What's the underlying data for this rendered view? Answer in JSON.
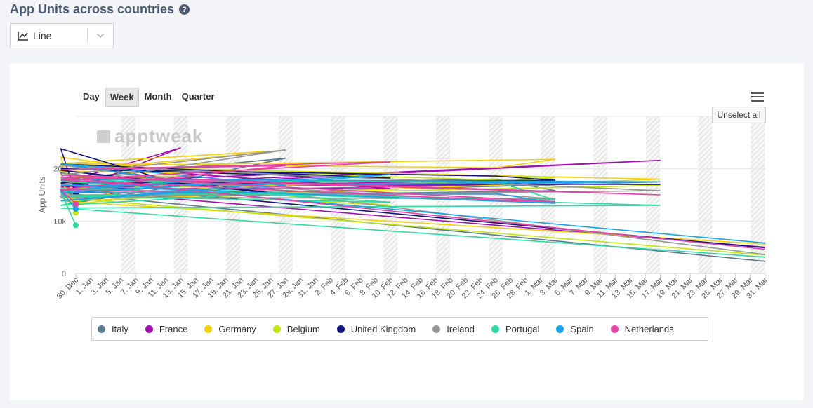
{
  "header": {
    "title": "App Units across countries",
    "help_icon": "question-circle-icon"
  },
  "chart_type_select": {
    "value": "Line",
    "icon": "line-chart-icon"
  },
  "range_buttons": [
    {
      "label": "Day",
      "active": false
    },
    {
      "label": "Week",
      "active": true
    },
    {
      "label": "Month",
      "active": false
    },
    {
      "label": "Quarter",
      "active": false
    }
  ],
  "unselect_label": "Unselect all",
  "watermark": "apptweak",
  "chart_data": {
    "type": "line",
    "ylabel": "App Units",
    "yticks": [
      "0",
      "10k",
      "20k"
    ],
    "ylim": [
      0,
      30000
    ],
    "x_tick_labels": [
      "30. Dec",
      "1. Jan",
      "3. Jan",
      "5. Jan",
      "7. Jan",
      "9. Jan",
      "11. Jan",
      "13. Jan",
      "15. Jan",
      "17. Jan",
      "19. Jan",
      "21. Jan",
      "23. Jan",
      "25. Jan",
      "27. Jan",
      "29. Jan",
      "31. Jan",
      "2. Feb",
      "4. Feb",
      "6. Feb",
      "8. Feb",
      "10. Feb",
      "12. Feb",
      "14. Feb",
      "16. Feb",
      "18. Feb",
      "20. Feb",
      "22. Feb",
      "24. Feb",
      "26. Feb",
      "28. Feb",
      "1. Mar",
      "3. Mar",
      "5. Mar",
      "7. Mar",
      "9. Mar",
      "11. Mar",
      "13. Mar",
      "15. Mar",
      "17. Mar",
      "19. Mar",
      "21. Mar",
      "23. Mar",
      "25. Mar",
      "27. Mar",
      "29. Mar",
      "31. Mar"
    ],
    "points_x": [
      "30. Dec",
      "6. Jan",
      "13. Jan",
      "20. Jan",
      "27. Jan",
      "3. Feb",
      "10. Feb",
      "17. Feb",
      "24. Feb",
      "3. Mar",
      "10. Mar",
      "17. Mar",
      "24. Mar",
      "31. Mar"
    ],
    "series": [
      {
        "name": "Italy",
        "color": "#5b7b8c",
        "values": [
          13200,
          19200,
          16800,
          13000,
          22000,
          18000,
          16800,
          16600,
          18000,
          15800,
          14400,
          17500,
          15400,
          2300
        ]
      },
      {
        "name": "France",
        "color": "#a010b0",
        "values": [
          16200,
          15000,
          24000,
          17200,
          19000,
          20800,
          16200,
          16200,
          17800,
          17000,
          16500,
          21600,
          16000,
          5000
        ]
      },
      {
        "name": "Germany",
        "color": "#f2d20d",
        "values": [
          13800,
          22200,
          19200,
          19500,
          23500,
          21000,
          18200,
          21000,
          20200,
          21800,
          20500,
          18000,
          13800,
          5600
        ]
      },
      {
        "name": "Belgium",
        "color": "#c4e314",
        "values": [
          11600,
          18300,
          18600,
          13000,
          17200,
          18800,
          13000,
          16200,
          17500,
          18300,
          20500,
          16800,
          14500,
          3500
        ]
      },
      {
        "name": "United Kingdom",
        "color": "#12137a",
        "values": [
          15200,
          23800,
          17000,
          19700,
          15000,
          20900,
          18200,
          20000,
          18600,
          17800,
          17200,
          17000,
          17300,
          4900
        ]
      },
      {
        "name": "Ireland",
        "color": "#969696",
        "values": [
          13000,
          14600,
          15200,
          17000,
          23600,
          18800,
          15000,
          15000,
          15100,
          14200,
          14600,
          15800,
          20700,
          3600
        ]
      },
      {
        "name": "Portugal",
        "color": "#2fd8a2",
        "values": [
          9200,
          15600,
          17800,
          13000,
          15500,
          14800,
          13600,
          17600,
          17600,
          14000,
          16200,
          13000,
          12500,
          3100
        ]
      },
      {
        "name": "Spain",
        "color": "#1aa2e8",
        "values": [
          12300,
          15800,
          17500,
          21000,
          16800,
          13900,
          18900,
          15400,
          15300,
          13400,
          16800,
          17500,
          18000,
          5800
        ]
      },
      {
        "name": "Netherlands",
        "color": "#e543a3",
        "values": [
          13300,
          16000,
          15600,
          16000,
          20600,
          19800,
          21300,
          17800,
          14000,
          13700,
          18800,
          15000,
          18400,
          4600
        ]
      }
    ]
  }
}
